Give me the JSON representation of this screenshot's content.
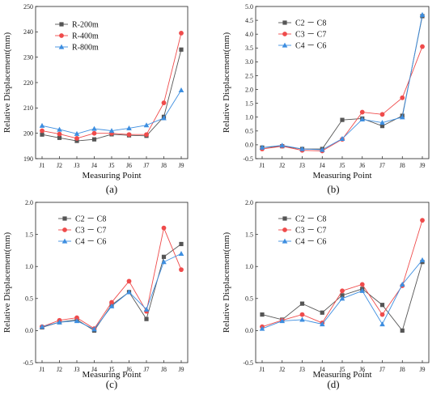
{
  "chart_data": [
    {
      "type": "line",
      "panel": "(a)",
      "panel_letter": "a",
      "categories": [
        "J1",
        "J2",
        "J3",
        "J4",
        "J5",
        "J6",
        "J7",
        "J8",
        "J9"
      ],
      "xlabel": "Measuring Point",
      "ylabel": "Relative Displacement(mm)",
      "ylim": [
        190,
        250
      ],
      "yticks": [
        190,
        200,
        210,
        220,
        230,
        240,
        250
      ],
      "ytick_labels": [
        "190",
        "200",
        "210",
        "220",
        "230",
        "240",
        "250"
      ],
      "legend_position": "top-left",
      "series": [
        {
          "name": "R-200m",
          "marker": "square",
          "color": "#555555",
          "values": [
            199.5,
            198.2,
            197.0,
            197.6,
            199.6,
            199.2,
            199.0,
            206.5,
            233.0
          ]
        },
        {
          "name": "R-400m",
          "marker": "circle",
          "color": "#ef4b4b",
          "values": [
            201.0,
            199.7,
            198.0,
            200.0,
            200.0,
            199.5,
            199.5,
            212.0,
            239.5
          ]
        },
        {
          "name": "R-800m",
          "marker": "triangle",
          "color": "#3d8ee0",
          "values": [
            203.0,
            201.5,
            199.8,
            201.8,
            201.0,
            202.0,
            203.2,
            206.0,
            217.0
          ]
        }
      ]
    },
    {
      "type": "line",
      "panel": "(b)",
      "panel_letter": "b",
      "categories": [
        "J1",
        "J2",
        "J3",
        "J4",
        "J5",
        "J6",
        "J7",
        "J8",
        "J9"
      ],
      "xlabel": "Measuring Point",
      "ylabel": "Relative Displacement(mm)",
      "ylim": [
        -0.5,
        5.0
      ],
      "yticks": [
        -0.5,
        0.0,
        0.5,
        1.0,
        1.5,
        2.0,
        2.5,
        3.0,
        3.5,
        4.0,
        4.5,
        5.0
      ],
      "ytick_labels": [
        "-0.5",
        "0.0",
        "0.5",
        "1.0",
        "1.5",
        "2.0",
        "2.5",
        "3.0",
        "3.5",
        "4.0",
        "4.5",
        "5.0"
      ],
      "legend_position": "top-left",
      "series": [
        {
          "name": "C2 － C8",
          "marker": "square",
          "color": "#555555",
          "values": [
            -0.1,
            -0.05,
            -0.15,
            -0.15,
            0.9,
            0.95,
            0.68,
            1.05,
            4.65
          ]
        },
        {
          "name": "C3 － C7",
          "marker": "circle",
          "color": "#ef4b4b",
          "values": [
            -0.15,
            -0.05,
            -0.2,
            -0.22,
            0.2,
            1.18,
            1.1,
            1.7,
            3.55
          ]
        },
        {
          "name": "C4 － C6",
          "marker": "triangle",
          "color": "#3d8ee0",
          "values": [
            -0.1,
            -0.02,
            -0.15,
            -0.18,
            0.22,
            0.92,
            0.8,
            1.0,
            4.7
          ]
        }
      ]
    },
    {
      "type": "line",
      "panel": "(c)",
      "panel_letter": "c",
      "categories": [
        "J1",
        "J2",
        "J3",
        "J4",
        "J5",
        "J6",
        "J7",
        "J8",
        "J9"
      ],
      "xlabel": "Measuring Point",
      "ylabel": "Relative Displacement(mm)",
      "ylim": [
        -0.5,
        2.0
      ],
      "yticks": [
        -0.5,
        0.0,
        0.5,
        1.0,
        1.5,
        2.0
      ],
      "ytick_labels": [
        "-0.5",
        "0.0",
        "0.5",
        "1.0",
        "1.5",
        "2.0"
      ],
      "legend_position": "top-left",
      "series": [
        {
          "name": "C2 － C8",
          "marker": "square",
          "color": "#555555",
          "values": [
            0.05,
            0.13,
            0.17,
            0.0,
            0.4,
            0.6,
            0.18,
            1.15,
            1.35
          ]
        },
        {
          "name": "C3 － C7",
          "marker": "circle",
          "color": "#ef4b4b",
          "values": [
            0.06,
            0.16,
            0.2,
            0.03,
            0.44,
            0.77,
            0.3,
            1.6,
            0.95
          ]
        },
        {
          "name": "C4 － C6",
          "marker": "triangle",
          "color": "#3d8ee0",
          "values": [
            0.06,
            0.13,
            0.15,
            0.02,
            0.38,
            0.6,
            0.33,
            1.07,
            1.2
          ]
        }
      ]
    },
    {
      "type": "line",
      "panel": "(d)",
      "panel_letter": "d",
      "categories": [
        "J1",
        "J2",
        "J3",
        "J4",
        "J5",
        "J6",
        "J7",
        "J8",
        "J9"
      ],
      "xlabel": "Measuring Point",
      "ylabel": "Relative Displacement(mm)",
      "ylim": [
        -0.5,
        2.0
      ],
      "yticks": [
        -0.5,
        0.0,
        0.5,
        1.0,
        1.5,
        2.0
      ],
      "ytick_labels": [
        "-0.5",
        "0.0",
        "0.5",
        "1.0",
        "1.5",
        "2.0"
      ],
      "legend_position": "top-left",
      "series": [
        {
          "name": "C2 － C8",
          "marker": "square",
          "color": "#555555",
          "values": [
            0.25,
            0.17,
            0.42,
            0.28,
            0.55,
            0.65,
            0.4,
            0.0,
            1.07
          ]
        },
        {
          "name": "C3 － C7",
          "marker": "circle",
          "color": "#ef4b4b",
          "values": [
            0.06,
            0.16,
            0.25,
            0.12,
            0.62,
            0.72,
            0.25,
            0.7,
            1.72
          ]
        },
        {
          "name": "C4 － C6",
          "marker": "triangle",
          "color": "#3d8ee0",
          "values": [
            0.03,
            0.15,
            0.17,
            0.1,
            0.5,
            0.62,
            0.1,
            0.72,
            1.1
          ]
        }
      ]
    }
  ]
}
